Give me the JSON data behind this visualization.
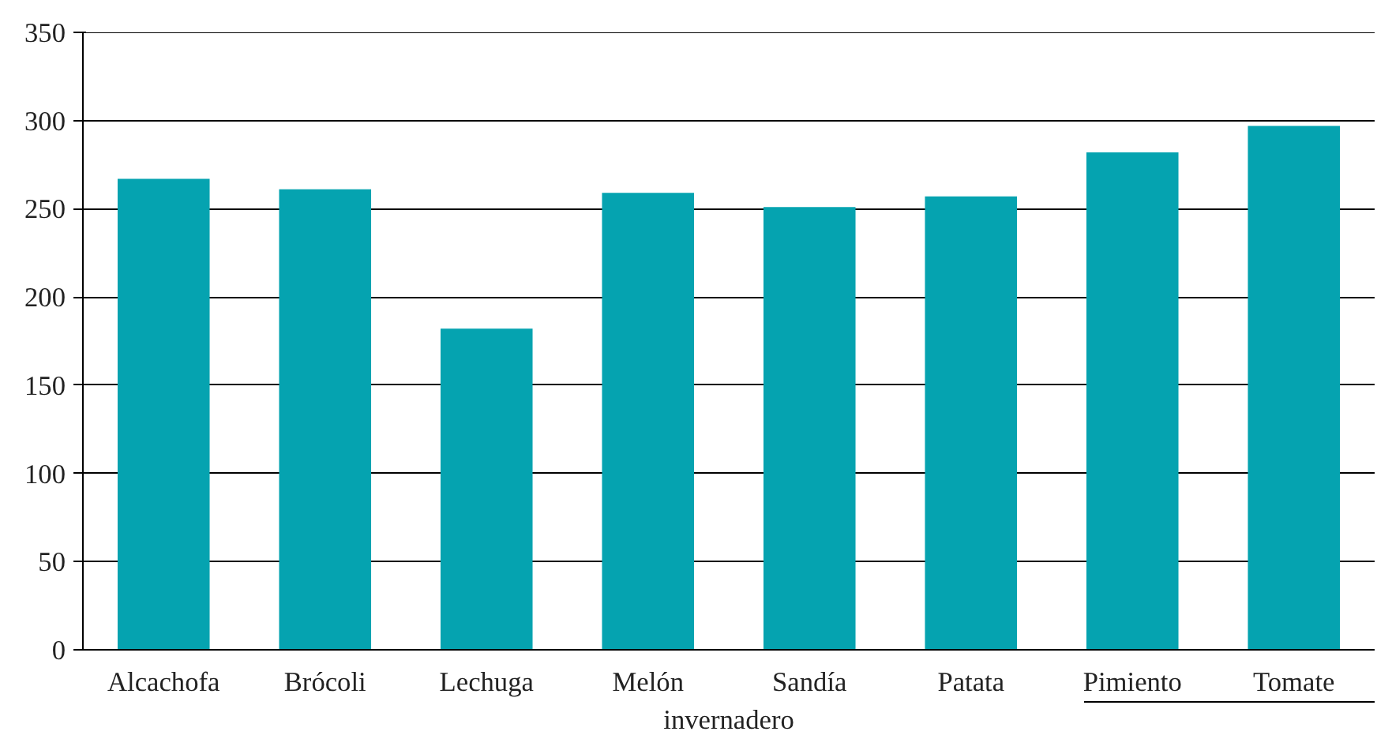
{
  "chart_data": {
    "type": "bar",
    "categories": [
      "Alcachofa",
      "Brócoli",
      "Lechuga",
      "Melón",
      "Sandía",
      "Patata",
      "Pimiento",
      "Tomate"
    ],
    "values": [
      267,
      261,
      182,
      259,
      251,
      257,
      282,
      297
    ],
    "color": "#05a3b0",
    "ylim": [
      0,
      350
    ],
    "yticks": [
      0,
      50,
      100,
      150,
      200,
      250,
      300,
      350
    ],
    "grid": "y",
    "annotations": [
      "invernadero"
    ]
  }
}
